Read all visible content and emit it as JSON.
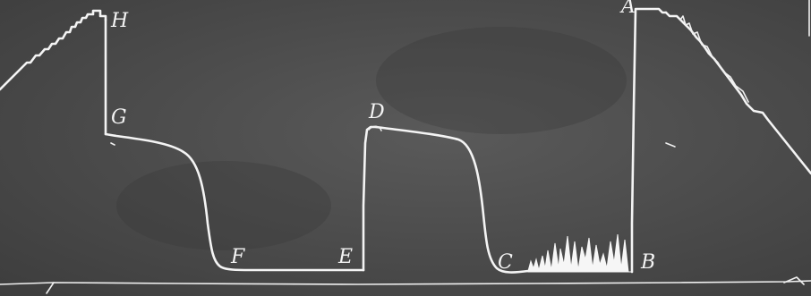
{
  "image": {
    "kind": "photographic oscilloscope / recorder trace on dark background",
    "point_labels": [
      "H",
      "G",
      "D",
      "F",
      "E",
      "C",
      "B",
      "A"
    ]
  },
  "colors": {
    "background": "#4a4a4a",
    "trace": "#f4f4f4"
  }
}
